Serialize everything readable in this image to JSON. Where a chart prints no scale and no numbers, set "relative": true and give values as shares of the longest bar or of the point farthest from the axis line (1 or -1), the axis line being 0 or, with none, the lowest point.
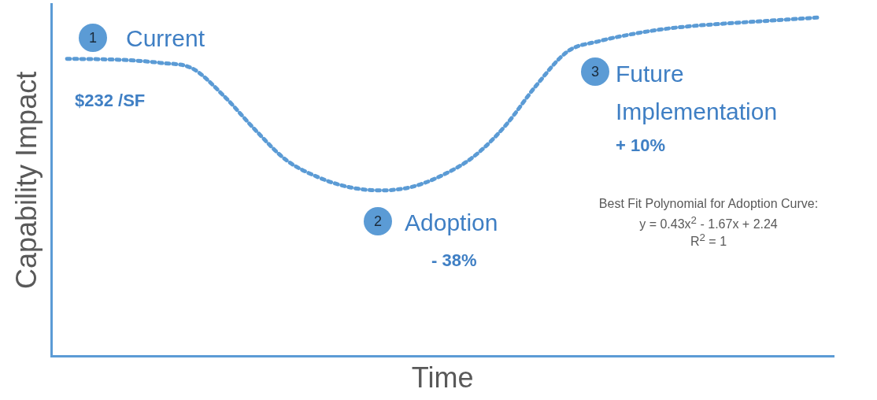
{
  "chart_data": {
    "type": "line",
    "relative": true,
    "xlabel": "Time",
    "ylabel": "Capability Impact",
    "categories": [
      null,
      null,
      null,
      null,
      null,
      null,
      null,
      null,
      null,
      null,
      null,
      null,
      null,
      null,
      null,
      null,
      null,
      null,
      null,
      null,
      null,
      null,
      null,
      null,
      null
    ],
    "series": [
      {
        "color": "#5b9bd5",
        "values": [
          0.878,
          0.877,
          0.874,
          0.866,
          0.85,
          0.77,
          0.67,
          0.58,
          0.53,
          0.5,
          0.49,
          0.5,
          0.535,
          0.59,
          0.68,
          0.8,
          0.9,
          0.93,
          0.95,
          0.965,
          0.975,
          0.982,
          0.988,
          0.994,
          1
        ]
      }
    ],
    "line_style": "dotted",
    "marker": "none",
    "grid": false,
    "legend": false,
    "annotations": [
      "1",
      "Current",
      "$232 /SF",
      "2",
      "Adoption",
      "- 38%",
      "3",
      "Future Implementation",
      "+ 10%",
      "Best Fit Polynomial for Adoption Curve:",
      "y = 0.43x$^{2}$ - 1.67x + 2.24",
      "R$^{2}$ = 1"
    ]
  }
}
